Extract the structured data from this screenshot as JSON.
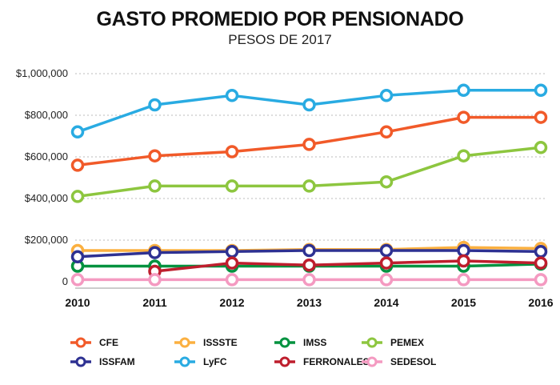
{
  "chart_data": {
    "type": "line",
    "title": "GASTO PROMEDIO POR PENSIONADO",
    "subtitle": "PESOS DE 2017",
    "xlabel": "",
    "ylabel": "",
    "x": [
      "2010",
      "2011",
      "2012",
      "2013",
      "2014",
      "2015",
      "2016"
    ],
    "ylim": [
      0,
      1000000
    ],
    "yticks": [
      {
        "value": 0,
        "label": "0"
      },
      {
        "value": 200000,
        "label": "$200,000"
      },
      {
        "value": 400000,
        "label": "$400,000"
      },
      {
        "value": 600000,
        "label": "$600,000"
      },
      {
        "value": 800000,
        "label": "$800,000"
      },
      {
        "value": 1000000,
        "label": "$1,000,000"
      }
    ],
    "grid": "horizontal-dotted",
    "legend_position": "bottom",
    "series": [
      {
        "name": "CFE",
        "color": "#f15a29",
        "values": [
          560000,
          605000,
          625000,
          660000,
          720000,
          790000,
          790000
        ]
      },
      {
        "name": "ISSSTE",
        "color": "#fbb040",
        "values": [
          150000,
          150000,
          150000,
          155000,
          155000,
          165000,
          160000
        ]
      },
      {
        "name": "IMSS",
        "color": "#00923f",
        "values": [
          75000,
          75000,
          75000,
          75000,
          75000,
          75000,
          85000
        ]
      },
      {
        "name": "PEMEX",
        "color": "#8dc63f",
        "values": [
          410000,
          460000,
          460000,
          460000,
          480000,
          605000,
          645000
        ]
      },
      {
        "name": "ISSFAM",
        "color": "#2e3192",
        "values": [
          120000,
          140000,
          145000,
          150000,
          150000,
          150000,
          145000
        ]
      },
      {
        "name": "LyFC",
        "color": "#29abe2",
        "values": [
          720000,
          850000,
          895000,
          850000,
          895000,
          920000,
          920000
        ]
      },
      {
        "name": "FERRONALES",
        "color": "#be1e2d",
        "values": [
          null,
          50000,
          90000,
          80000,
          90000,
          100000,
          90000
        ]
      },
      {
        "name": "SEDESOL",
        "color": "#f49ac1",
        "values": [
          10000,
          10000,
          10000,
          10000,
          10000,
          10000,
          10000
        ]
      }
    ]
  }
}
